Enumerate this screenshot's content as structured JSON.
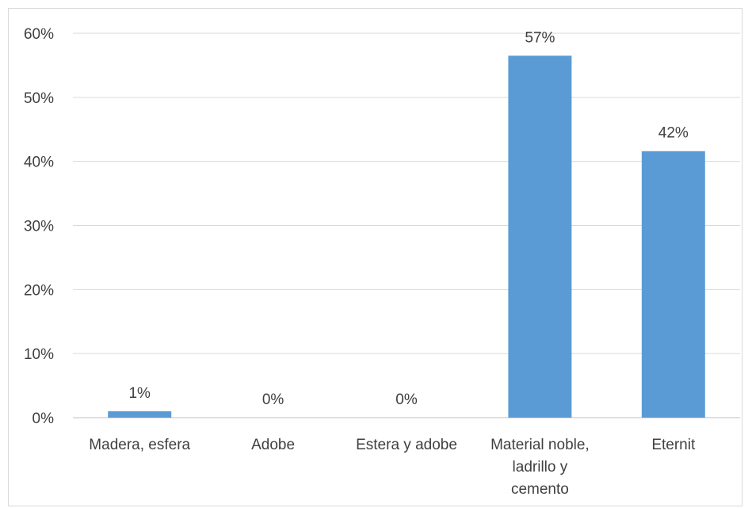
{
  "chart_data": {
    "type": "bar",
    "categories": [
      [
        "Madera, esfera"
      ],
      [
        "Adobe"
      ],
      [
        "Estera y adobe"
      ],
      [
        "Material noble,",
        "ladrillo y",
        "cemento"
      ],
      [
        "Eternit"
      ]
    ],
    "values": [
      1,
      0,
      0,
      56.5,
      41.6
    ],
    "data_labels": [
      "1%",
      "0%",
      "0%",
      "57%",
      "42%"
    ],
    "y_ticks": [
      0,
      10,
      20,
      30,
      40,
      50,
      60
    ],
    "y_tick_labels": [
      "0%",
      "10%",
      "20%",
      "30%",
      "40%",
      "50%",
      "60%"
    ],
    "ylim": [
      0,
      60
    ],
    "grid": true,
    "bar_color": "#5b9bd5",
    "legend": "none"
  }
}
